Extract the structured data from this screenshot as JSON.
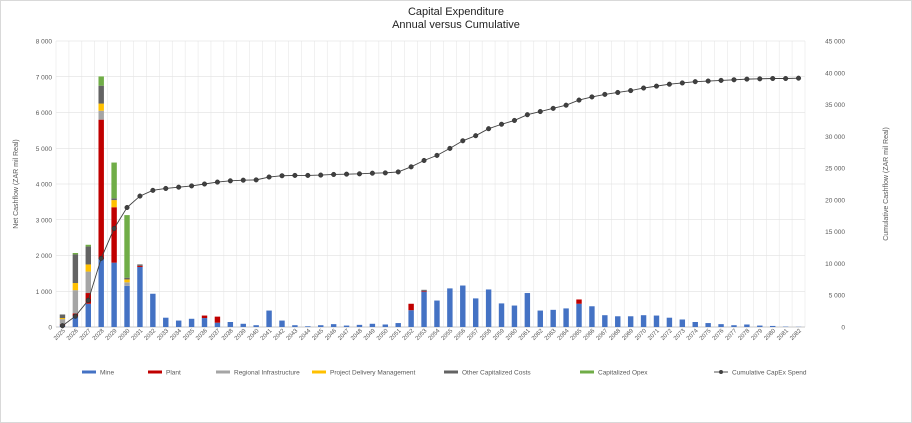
{
  "chart_data": {
    "type": "bar",
    "title": "Capital Expenditure",
    "subtitle": "Annual versus Cumulative",
    "ylabel": "Net Cashflow (ZAR mil Real)",
    "y2label": "Cumulative Cashflow (ZAR mil Real)",
    "ylim": [
      0,
      8000
    ],
    "y2lim": [
      0,
      45000
    ],
    "yticks": [
      "0",
      "1 000",
      "2 000",
      "3 000",
      "4 000",
      "5 000",
      "6 000",
      "7 000",
      "8 000"
    ],
    "y2ticks": [
      "0",
      "5 000",
      "10 000",
      "15 000",
      "20 000",
      "25 000",
      "30 000",
      "35 000",
      "40 000",
      "45 000"
    ],
    "grid": true,
    "legend_position": "bottom",
    "categories": [
      "2025",
      "2026",
      "2027",
      "2028",
      "2029",
      "2030",
      "2031",
      "2032",
      "2033",
      "2034",
      "2035",
      "2036",
      "2037",
      "2038",
      "2039",
      "2040",
      "2041",
      "2042",
      "2043",
      "2044",
      "2045",
      "2046",
      "2047",
      "2048",
      "2049",
      "2050",
      "2051",
      "2052",
      "2053",
      "2054",
      "2055",
      "2056",
      "2057",
      "2058",
      "2059",
      "2060",
      "2061",
      "2062",
      "2063",
      "2064",
      "2065",
      "2066",
      "2067",
      "2068",
      "2069",
      "2070",
      "2071",
      "2072",
      "2073",
      "2074",
      "2075",
      "2076",
      "2077",
      "2078",
      "2079",
      "2080",
      "2081",
      "2082"
    ],
    "series": [
      {
        "name": "Mine",
        "kind": "bar",
        "color": "#4472c4",
        "values": [
          50,
          300,
          650,
          1900,
          1800,
          1150,
          1680,
          930,
          260,
          180,
          230,
          250,
          120,
          140,
          90,
          50,
          460,
          180,
          50,
          20,
          50,
          80,
          40,
          60,
          90,
          70,
          110,
          470,
          990,
          740,
          1080,
          1160,
          800,
          1050,
          660,
          600,
          950,
          460,
          480,
          520,
          650,
          580,
          330,
          300,
          300,
          330,
          320,
          260,
          210,
          140,
          110,
          80,
          50,
          70,
          40,
          30,
          10,
          5
        ]
      },
      {
        "name": "Plant",
        "kind": "bar",
        "color": "#c00000",
        "values": [
          20,
          80,
          300,
          3900,
          1550,
          0,
          30,
          0,
          0,
          0,
          0,
          70,
          170,
          0,
          0,
          0,
          0,
          0,
          0,
          0,
          0,
          0,
          0,
          0,
          0,
          0,
          0,
          180,
          20,
          0,
          0,
          0,
          0,
          0,
          0,
          0,
          0,
          0,
          0,
          0,
          120,
          0,
          0,
          0,
          0,
          0,
          0,
          0,
          0,
          0,
          0,
          0,
          0,
          0,
          0,
          0,
          0,
          0
        ]
      },
      {
        "name": "Regional Infrastructure",
        "kind": "bar",
        "color": "#a5a5a5",
        "values": [
          150,
          650,
          600,
          250,
          0,
          100,
          0,
          0,
          0,
          0,
          0,
          0,
          0,
          0,
          0,
          0,
          0,
          0,
          0,
          0,
          0,
          0,
          0,
          0,
          0,
          0,
          0,
          0,
          0,
          0,
          0,
          0,
          0,
          0,
          0,
          0,
          0,
          0,
          0,
          0,
          0,
          0,
          0,
          0,
          0,
          0,
          0,
          0,
          0,
          0,
          0,
          0,
          0,
          0,
          0,
          0,
          0,
          0
        ]
      },
      {
        "name": "Project Delivery Management",
        "kind": "bar",
        "color": "#ffc000",
        "values": [
          30,
          200,
          200,
          200,
          200,
          80,
          0,
          0,
          0,
          0,
          0,
          0,
          0,
          0,
          0,
          0,
          0,
          0,
          0,
          0,
          0,
          0,
          0,
          0,
          0,
          0,
          0,
          0,
          0,
          0,
          0,
          0,
          0,
          0,
          0,
          0,
          0,
          0,
          0,
          0,
          0,
          0,
          0,
          0,
          0,
          0,
          0,
          0,
          0,
          0,
          0,
          0,
          0,
          0,
          0,
          0,
          0,
          0
        ]
      },
      {
        "name": "Other Capitalized Costs",
        "kind": "bar",
        "color": "#636363",
        "values": [
          100,
          800,
          500,
          500,
          50,
          50,
          40,
          0,
          0,
          0,
          0,
          0,
          0,
          0,
          0,
          0,
          0,
          0,
          0,
          0,
          0,
          0,
          0,
          0,
          0,
          0,
          0,
          0,
          30,
          0,
          0,
          0,
          0,
          0,
          0,
          0,
          0,
          0,
          0,
          0,
          0,
          0,
          0,
          0,
          0,
          0,
          0,
          0,
          0,
          0,
          0,
          0,
          0,
          0,
          0,
          0,
          0,
          0
        ]
      },
      {
        "name": "Capitalized Opex",
        "kind": "bar",
        "color": "#70ad47",
        "values": [
          0,
          40,
          50,
          260,
          1000,
          1750,
          0,
          0,
          0,
          0,
          0,
          0,
          0,
          0,
          0,
          0,
          0,
          0,
          0,
          0,
          0,
          0,
          0,
          0,
          0,
          0,
          0,
          0,
          0,
          0,
          0,
          0,
          0,
          0,
          0,
          0,
          0,
          0,
          0,
          0,
          0,
          0,
          0,
          0,
          0,
          0,
          0,
          0,
          0,
          0,
          0,
          0,
          0,
          0,
          0,
          0,
          0,
          0
        ]
      },
      {
        "name": "Cumulative CapEx Spend",
        "kind": "line",
        "axis": "right",
        "color": "#404040",
        "values": [
          200,
          1700,
          4200,
          10800,
          15500,
          18800,
          20600,
          21500,
          21800,
          22000,
          22200,
          22500,
          22800,
          23000,
          23100,
          23150,
          23600,
          23800,
          23850,
          23850,
          23900,
          24000,
          24050,
          24100,
          24200,
          24250,
          24400,
          25200,
          26200,
          27000,
          28100,
          29300,
          30100,
          31200,
          31900,
          32500,
          33400,
          33900,
          34400,
          34900,
          35700,
          36200,
          36600,
          36900,
          37200,
          37600,
          37900,
          38200,
          38400,
          38600,
          38700,
          38800,
          38900,
          39000,
          39050,
          39100,
          39100,
          39150
        ]
      }
    ]
  }
}
